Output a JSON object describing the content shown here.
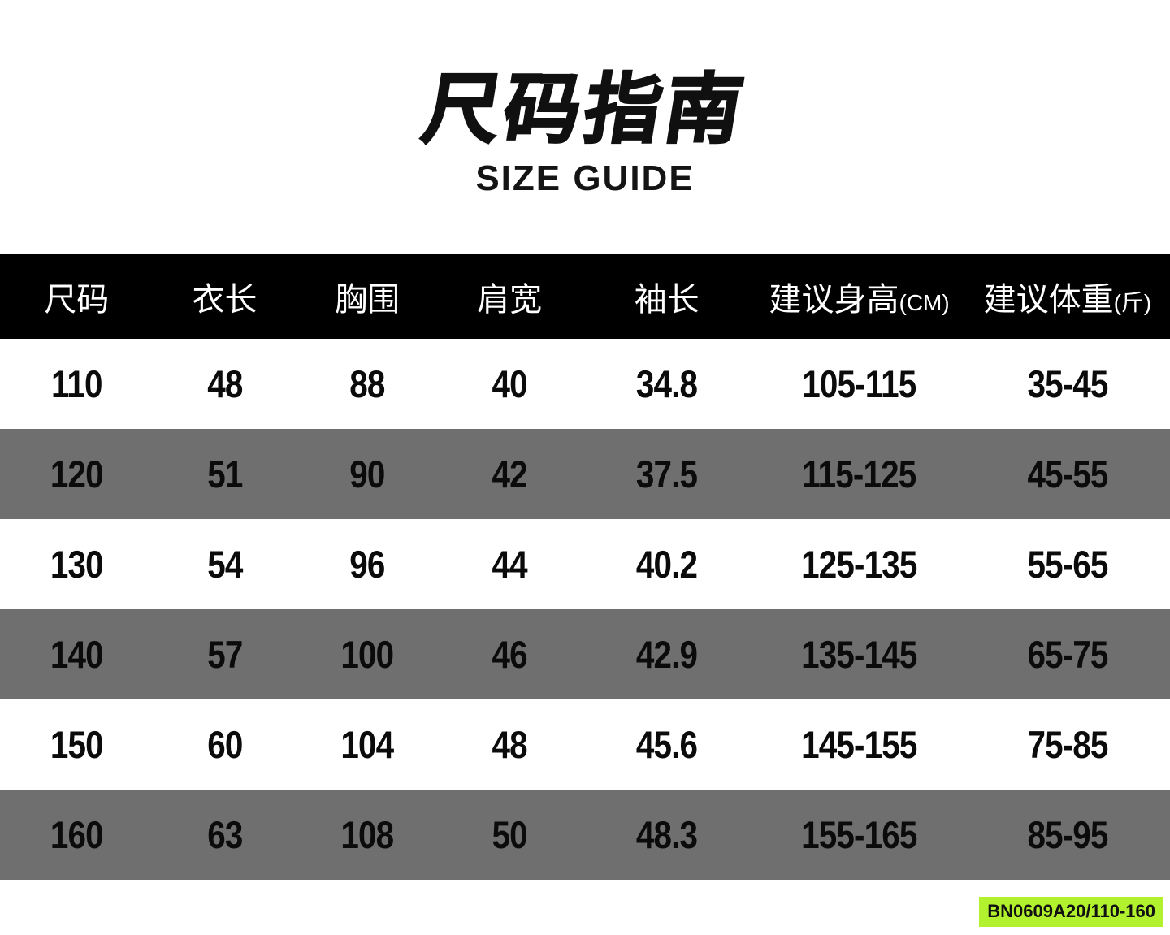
{
  "title": {
    "main": "尺码指南",
    "sub": "SIZE GUIDE"
  },
  "table": {
    "headers": [
      {
        "label": "尺码",
        "suffix": ""
      },
      {
        "label": "衣长",
        "suffix": ""
      },
      {
        "label": "胸围",
        "suffix": ""
      },
      {
        "label": "肩宽",
        "suffix": ""
      },
      {
        "label": "袖长",
        "suffix": ""
      },
      {
        "label": "建议身高",
        "suffix": "(CM)"
      },
      {
        "label": "建议体重",
        "suffix": "(斤)"
      }
    ],
    "rows": [
      [
        "110",
        "48",
        "88",
        "40",
        "34.8",
        "105-115",
        "35-45"
      ],
      [
        "120",
        "51",
        "90",
        "42",
        "37.5",
        "115-125",
        "45-55"
      ],
      [
        "130",
        "54",
        "96",
        "44",
        "40.2",
        "125-135",
        "55-65"
      ],
      [
        "140",
        "57",
        "100",
        "46",
        "42.9",
        "135-145",
        "65-75"
      ],
      [
        "150",
        "60",
        "104",
        "48",
        "45.6",
        "145-155",
        "75-85"
      ],
      [
        "160",
        "63",
        "108",
        "50",
        "48.3",
        "155-165",
        "85-95"
      ]
    ]
  },
  "footer": {
    "sku_label": "BN0609A20/110-160"
  },
  "colors": {
    "header_bar": "#000000",
    "row_alt_gray": "#6f6f6f",
    "sku_tag_bg": "#b2f12e",
    "text_black": "#0b0b0b",
    "text_white": "#ffffff"
  }
}
